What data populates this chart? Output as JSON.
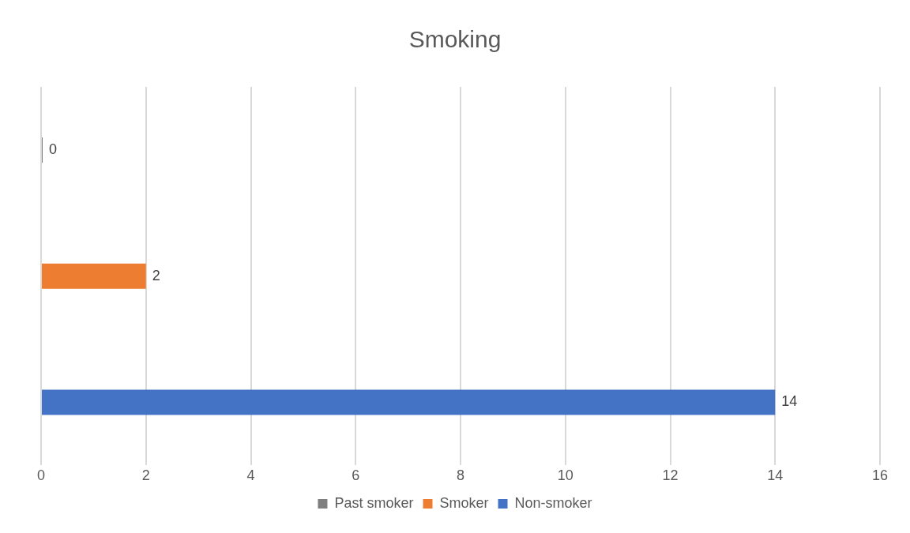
{
  "chart_data": {
    "type": "bar",
    "title": "Smoking",
    "orientation": "horizontal",
    "categories": [
      null
    ],
    "series": [
      {
        "name": "Past smoker",
        "color": "#7f7f7f",
        "values": [
          0
        ]
      },
      {
        "name": "Smoker",
        "color": "#ed7d31",
        "values": [
          2
        ]
      },
      {
        "name": "Non-smoker",
        "color": "#4472c4",
        "values": [
          14
        ]
      }
    ],
    "xlim": [
      0,
      16
    ],
    "xticks": [
      0,
      2,
      4,
      6,
      8,
      10,
      12,
      14,
      16
    ],
    "grid": "x",
    "legend": "bottom",
    "data_labels": true
  }
}
